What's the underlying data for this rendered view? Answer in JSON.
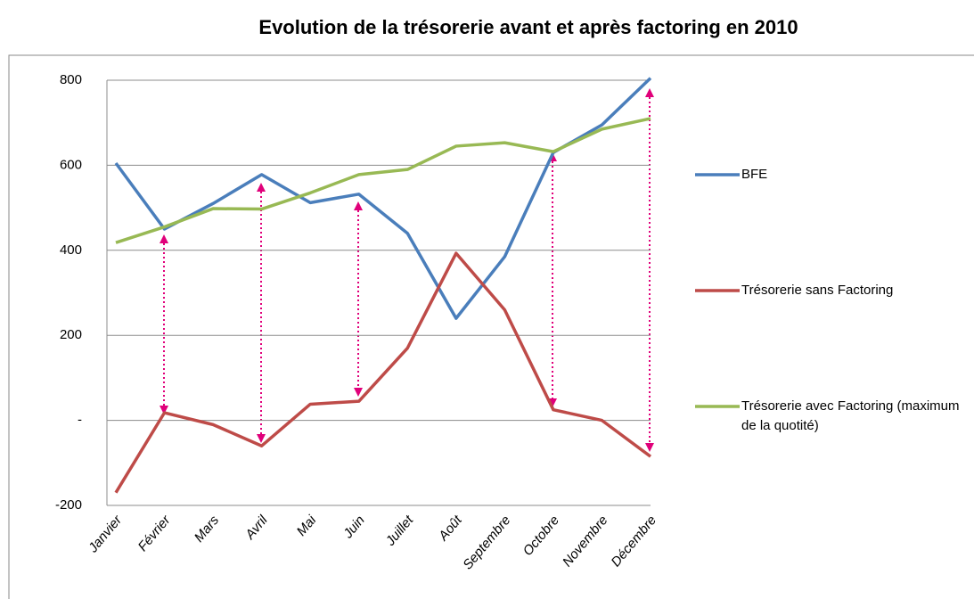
{
  "chart_data": {
    "type": "line",
    "title": "Evolution de la trésorerie avant et après factoring en 2010",
    "categories": [
      "Janvier",
      "Février",
      "Mars",
      "Avril",
      "Mai",
      "Juin",
      "Juillet",
      "Août",
      "Septembre",
      "Octobre",
      "Novembre",
      "Décembre"
    ],
    "series": [
      {
        "name": "BFE",
        "color": "#4a7ebb",
        "values": [
          605,
          450,
          510,
          578,
          512,
          532,
          440,
          240,
          385,
          630,
          695,
          805
        ]
      },
      {
        "name": "Trésorerie sans Factoring",
        "color": "#be4b48",
        "values": [
          -170,
          18,
          -10,
          -60,
          38,
          45,
          170,
          393,
          260,
          25,
          0,
          -85
        ]
      },
      {
        "name": "Trésorerie avec Factoring (maximum de la quotité)",
        "color": "#98b954",
        "values": [
          418,
          455,
          498,
          497,
          535,
          578,
          590,
          645,
          653,
          632,
          685,
          710
        ]
      }
    ],
    "ylim": [
      -200,
      800
    ],
    "yticks": [
      -200,
      {
        "value": 0,
        "label": "-"
      },
      200,
      400,
      600,
      800
    ],
    "grid": true,
    "legend": "right"
  }
}
